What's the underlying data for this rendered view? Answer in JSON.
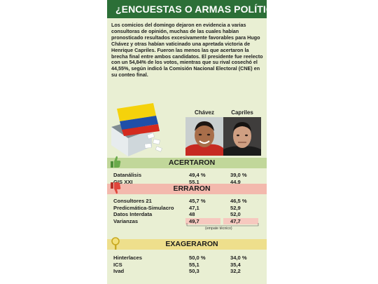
{
  "banner": {
    "title": "¿ENCUESTAS O ARMAS POLÍTICAS?"
  },
  "intro": "Los comicios del domingo dejaron en evidencia a varias consultoras de opinión, muchas de las cuales habían pronosticado resultados excesivamente favorables para Hugo Chávez y otras habían vaticinado una apretada victoria de Henrique Capriles. Fueron las menos las que acertaron la brecha final entre ambos candidatos. El presidente fue reelecto con un 54,84% de los votos, mientras que su rival cosechó el 44,55%, según indicó la Comisión Nacional Electoral (CNE) en su conteo final.",
  "columns": {
    "chavez": "Chávez",
    "capriles": "Capriles"
  },
  "sections": [
    {
      "title": "ACERTARON",
      "rows": [
        {
          "name": "Datanálisis",
          "chavez": "49,4 %",
          "capriles": "39,0 %"
        },
        {
          "name": "GIS XXI",
          "chavez": "55,1",
          "capriles": "44,9"
        }
      ]
    },
    {
      "title": "ERRARON",
      "rows": [
        {
          "name": "Consultores 21",
          "chavez": "45,7 %",
          "capriles": "46,5 %"
        },
        {
          "name": "Predicmática-Simulacro",
          "chavez": "47,1",
          "capriles": "52,9"
        },
        {
          "name": "Datos Interdata",
          "chavez": "48",
          "capriles": "52,0"
        },
        {
          "name": "Varianzas",
          "chavez": "49,7",
          "capriles": "47,7"
        }
      ],
      "note": "(empate técnico)"
    },
    {
      "title": "EXAGERARON",
      "rows": [
        {
          "name": "Hinterlaces",
          "chavez": "50,0 %",
          "capriles": "34,0 %"
        },
        {
          "name": "ICS",
          "chavez": "55,1",
          "capriles": "35,4"
        },
        {
          "name": "Ivad",
          "chavez": "50,3",
          "capriles": "32,2"
        }
      ]
    }
  ],
  "colors": {
    "banner": "#2c6f37",
    "background": "#e9efd3",
    "acertaron": "#c1d79a",
    "erraron": "#f3b9ad",
    "exageraron": "#eedf8c",
    "venezuela_yellow": "#f5d20b",
    "venezuela_blue": "#1f4fa8",
    "venezuela_red": "#d42a1e"
  },
  "icons": {
    "acertaron": "thumbs-up-icon",
    "erraron": "thumbs-down-icon",
    "exageraron": "magnifier-icon",
    "hero": "ballot-box-flag-icon"
  }
}
